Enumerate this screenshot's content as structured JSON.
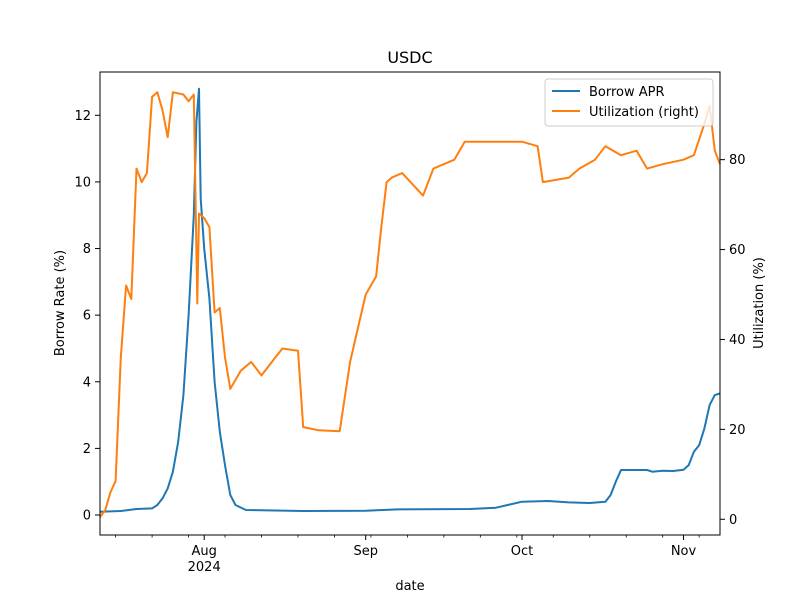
{
  "chart_data": {
    "type": "line",
    "title": "USDC",
    "xlabel": "date",
    "ylabel_left": "Borrow Rate (%)",
    "ylabel_right": "Utilization (%)",
    "xlim": [
      "2024-07-12",
      "2024-11-08"
    ],
    "ylim_left": [
      -0.6,
      13.3
    ],
    "ylim_right": [
      -3.5,
      99.5
    ],
    "x_ticks": [
      {
        "date": "2024-08-01",
        "label": "Aug",
        "sublabel": "2024"
      },
      {
        "date": "2024-09-01",
        "label": "Sep",
        "sublabel": ""
      },
      {
        "date": "2024-10-01",
        "label": "Oct",
        "sublabel": ""
      },
      {
        "date": "2024-11-01",
        "label": "Nov",
        "sublabel": ""
      }
    ],
    "y_ticks_left": [
      "0",
      "2",
      "4",
      "6",
      "8",
      "10",
      "12"
    ],
    "y_ticks_right": [
      "0",
      "20",
      "40",
      "60",
      "80"
    ],
    "legend_position": "top-right",
    "grid": false,
    "series": [
      {
        "name": "Borrow APR",
        "axis": "left",
        "color": "#1f77b4",
        "points": [
          [
            "2024-07-12",
            0.1
          ],
          [
            "2024-07-16",
            0.12
          ],
          [
            "2024-07-19",
            0.18
          ],
          [
            "2024-07-22",
            0.2
          ],
          [
            "2024-07-23",
            0.3
          ],
          [
            "2024-07-24",
            0.5
          ],
          [
            "2024-07-25",
            0.8
          ],
          [
            "2024-07-26",
            1.3
          ],
          [
            "2024-07-27",
            2.2
          ],
          [
            "2024-07-28",
            3.6
          ],
          [
            "2024-07-29",
            6.0
          ],
          [
            "2024-07-30",
            9.0
          ],
          [
            "2024-07-30T12:00",
            11.8
          ],
          [
            "2024-07-31",
            12.8
          ],
          [
            "2024-07-31T08:00",
            9.5
          ],
          [
            "2024-08-01",
            8.0
          ],
          [
            "2024-08-02",
            6.5
          ],
          [
            "2024-08-03",
            4.0
          ],
          [
            "2024-08-04",
            2.5
          ],
          [
            "2024-08-05",
            1.5
          ],
          [
            "2024-08-06",
            0.6
          ],
          [
            "2024-08-07",
            0.3
          ],
          [
            "2024-08-09",
            0.15
          ],
          [
            "2024-08-20",
            0.12
          ],
          [
            "2024-09-01",
            0.13
          ],
          [
            "2024-09-07",
            0.17
          ],
          [
            "2024-09-21",
            0.18
          ],
          [
            "2024-09-26",
            0.22
          ],
          [
            "2024-10-01",
            0.4
          ],
          [
            "2024-10-06",
            0.42
          ],
          [
            "2024-10-10",
            0.38
          ],
          [
            "2024-10-14",
            0.36
          ],
          [
            "2024-10-17",
            0.4
          ],
          [
            "2024-10-18",
            0.6
          ],
          [
            "2024-10-19",
            1.0
          ],
          [
            "2024-10-20",
            1.35
          ],
          [
            "2024-10-25",
            1.35
          ],
          [
            "2024-10-26",
            1.3
          ],
          [
            "2024-10-28",
            1.33
          ],
          [
            "2024-10-30",
            1.32
          ],
          [
            "2024-11-01",
            1.36
          ],
          [
            "2024-11-02",
            1.5
          ],
          [
            "2024-11-03",
            1.9
          ],
          [
            "2024-11-04",
            2.1
          ],
          [
            "2024-11-05",
            2.6
          ],
          [
            "2024-11-06",
            3.3
          ],
          [
            "2024-11-07",
            3.6
          ],
          [
            "2024-11-08",
            3.65
          ]
        ]
      },
      {
        "name": "Utilization (right)",
        "axis": "right",
        "color": "#ff7f0e",
        "points": [
          [
            "2024-07-12",
            0.5
          ],
          [
            "2024-07-13",
            2
          ],
          [
            "2024-07-14",
            6
          ],
          [
            "2024-07-15",
            8.5
          ],
          [
            "2024-07-16",
            36
          ],
          [
            "2024-07-17",
            52
          ],
          [
            "2024-07-18",
            49
          ],
          [
            "2024-07-19",
            78
          ],
          [
            "2024-07-20",
            75
          ],
          [
            "2024-07-21",
            77
          ],
          [
            "2024-07-22",
            94
          ],
          [
            "2024-07-23",
            95
          ],
          [
            "2024-07-24",
            91
          ],
          [
            "2024-07-25",
            85
          ],
          [
            "2024-07-26",
            95
          ],
          [
            "2024-07-28",
            94.5
          ],
          [
            "2024-07-29",
            93
          ],
          [
            "2024-07-30",
            94.5
          ],
          [
            "2024-07-30T16:00",
            48
          ],
          [
            "2024-07-31",
            68
          ],
          [
            "2024-08-01",
            67
          ],
          [
            "2024-08-02",
            65
          ],
          [
            "2024-08-03",
            46
          ],
          [
            "2024-08-04",
            47
          ],
          [
            "2024-08-05",
            36
          ],
          [
            "2024-08-06",
            29
          ],
          [
            "2024-08-07",
            31
          ],
          [
            "2024-08-08",
            33
          ],
          [
            "2024-08-10",
            35
          ],
          [
            "2024-08-12",
            32
          ],
          [
            "2024-08-14",
            35
          ],
          [
            "2024-08-16",
            38
          ],
          [
            "2024-08-19",
            37.5
          ],
          [
            "2024-08-20",
            20.5
          ],
          [
            "2024-08-23",
            19.8
          ],
          [
            "2024-08-27",
            19.6
          ],
          [
            "2024-08-29",
            35
          ],
          [
            "2024-09-01",
            50
          ],
          [
            "2024-09-03",
            54
          ],
          [
            "2024-09-04",
            65
          ],
          [
            "2024-09-05",
            75
          ],
          [
            "2024-09-06",
            76
          ],
          [
            "2024-09-08",
            77
          ],
          [
            "2024-09-12",
            72
          ],
          [
            "2024-09-14",
            78
          ],
          [
            "2024-09-18",
            80
          ],
          [
            "2024-09-20",
            84
          ],
          [
            "2024-09-25",
            84
          ],
          [
            "2024-10-01",
            84
          ],
          [
            "2024-10-04",
            83
          ],
          [
            "2024-10-05",
            75
          ],
          [
            "2024-10-10",
            76
          ],
          [
            "2024-10-12",
            78
          ],
          [
            "2024-10-15",
            80
          ],
          [
            "2024-10-17",
            83
          ],
          [
            "2024-10-20",
            81
          ],
          [
            "2024-10-23",
            82
          ],
          [
            "2024-10-25",
            78
          ],
          [
            "2024-10-28",
            79
          ],
          [
            "2024-11-01",
            80
          ],
          [
            "2024-11-03",
            81
          ],
          [
            "2024-11-05",
            88
          ],
          [
            "2024-11-06",
            92
          ],
          [
            "2024-11-07",
            82
          ],
          [
            "2024-11-08",
            79
          ]
        ]
      }
    ]
  }
}
